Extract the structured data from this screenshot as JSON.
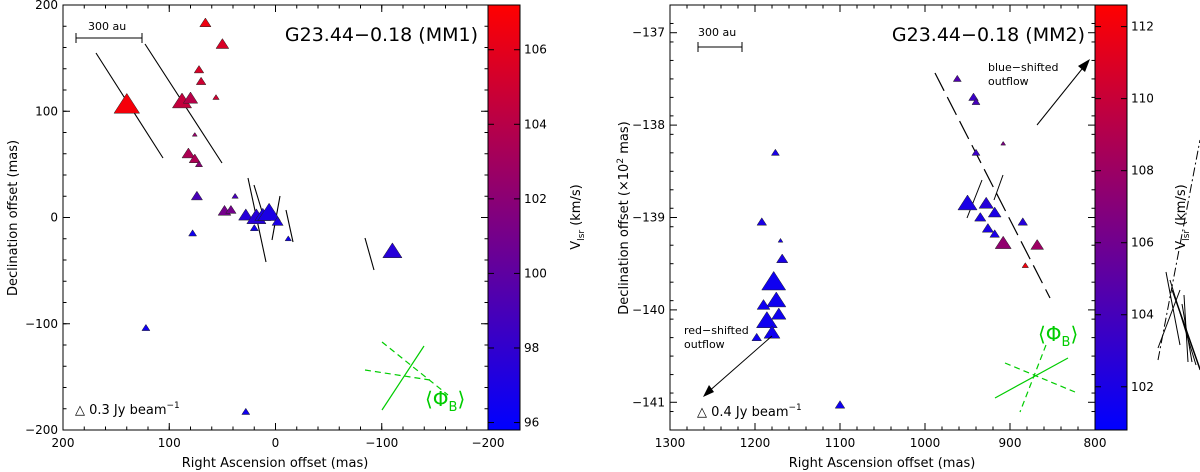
{
  "chart_data": [
    {
      "type": "scatter",
      "title": "G23.44−0.18 (MM1)",
      "xlabel": "Right Ascension offset (mas)",
      "ylabel": "Declination offset (mas)",
      "xlim": [
        200,
        -200
      ],
      "ylim": [
        -200,
        200
      ],
      "x_ticks": [
        "200",
        "100",
        "0",
        "−100",
        "−200"
      ],
      "y_ticks": [
        "−200",
        "−100",
        "0",
        "100",
        "200"
      ],
      "scale_bar": "300 au",
      "legend_flux": "△ 0.3 Jy beam",
      "legend_flux_exp": "−1",
      "phi_label": "⟨Φ",
      "phi_sub": "B",
      "phi_close": "⟩",
      "colorbar": {
        "label": "V",
        "label_sub": "lsr",
        "label_unit": " (km/s)",
        "range": [
          95.8,
          107.2
        ],
        "ticks": [
          "96",
          "98",
          "100",
          "102",
          "104",
          "106"
        ]
      },
      "points": [
        {
          "ra": 140,
          "dec": 106,
          "v": 106.8,
          "size": 3.2
        },
        {
          "ra": 88,
          "dec": 109,
          "v": 104.5,
          "size": 2.4
        },
        {
          "ra": 80,
          "dec": 112,
          "v": 104.0,
          "size": 1.8
        },
        {
          "ra": 66,
          "dec": 183,
          "v": 106.5,
          "size": 1.4
        },
        {
          "ra": 50,
          "dec": 163,
          "v": 105.5,
          "size": 1.6
        },
        {
          "ra": 72,
          "dec": 139,
          "v": 105.5,
          "size": 1.2
        },
        {
          "ra": 70,
          "dec": 128,
          "v": 105.0,
          "size": 1.2
        },
        {
          "ra": 56,
          "dec": 113,
          "v": 105.0,
          "size": 0.8
        },
        {
          "ra": 76,
          "dec": 78,
          "v": 102.5,
          "size": 0.6
        },
        {
          "ra": 82,
          "dec": 60,
          "v": 103.5,
          "size": 1.6
        },
        {
          "ra": 76,
          "dec": 55,
          "v": 103.5,
          "size": 1.4
        },
        {
          "ra": 72,
          "dec": 50,
          "v": 102.0,
          "size": 0.9
        },
        {
          "ra": 74,
          "dec": 20,
          "v": 99.0,
          "size": 1.4
        },
        {
          "ra": 48,
          "dec": 6,
          "v": 101.0,
          "size": 1.6
        },
        {
          "ra": 42,
          "dec": 7,
          "v": 101.0,
          "size": 1.3
        },
        {
          "ra": 38,
          "dec": 20,
          "v": 99.0,
          "size": 0.8
        },
        {
          "ra": 28,
          "dec": 2,
          "v": 97.5,
          "size": 1.8
        },
        {
          "ra": 18,
          "dec": 0,
          "v": 97.5,
          "size": 2.4
        },
        {
          "ra": 12,
          "dec": 2,
          "v": 97.0,
          "size": 2.0
        },
        {
          "ra": 6,
          "dec": 4,
          "v": 97.0,
          "size": 2.8
        },
        {
          "ra": -2,
          "dec": -4,
          "v": 97.0,
          "size": 1.4
        },
        {
          "ra": 20,
          "dec": -10,
          "v": 96.5,
          "size": 1.0
        },
        {
          "ra": -12,
          "dec": -20,
          "v": 96.5,
          "size": 0.8
        },
        {
          "ra": 78,
          "dec": -15,
          "v": 96.5,
          "size": 1.0
        },
        {
          "ra": -110,
          "dec": -32,
          "v": 97.5,
          "size": 2.4
        },
        {
          "ra": 122,
          "dec": -104,
          "v": 96.5,
          "size": 1.0
        },
        {
          "ra": 28,
          "dec": -183,
          "v": 96.5,
          "size": 1.0
        }
      ]
    },
    {
      "type": "scatter",
      "title": "G23.44−0.18 (MM2)",
      "xlabel": "Right Ascension offset (mas)",
      "ylabel": "Declination offset (×10",
      "ylabel_sup": "2",
      "ylabel_end": " mas)",
      "xlim": [
        1300,
        800
      ],
      "ylim": [
        -141.3,
        -136.7
      ],
      "x_ticks": [
        "1300",
        "1200",
        "1100",
        "1000",
        "900",
        "800"
      ],
      "y_ticks": [
        "−141",
        "−140",
        "−139",
        "−138",
        "−137"
      ],
      "scale_bar": "300 au",
      "legend_flux": "△ 0.4 Jy beam",
      "legend_flux_exp": "−1",
      "phi_label": "⟨Φ",
      "phi_sub": "B",
      "phi_close": "⟩",
      "annotation_blue_1": "blue−shifted",
      "annotation_blue_2": "outflow",
      "annotation_red_1": "red−shifted",
      "annotation_red_2": "outflow",
      "colorbar": {
        "label": "V",
        "label_sub": "lsr",
        "label_unit": " (km/s)",
        "range": [
          100.8,
          112.6
        ],
        "ticks": [
          "102",
          "104",
          "106",
          "108",
          "110",
          "112"
        ]
      },
      "points": [
        {
          "ra": 1192,
          "dec": -139.05,
          "v": 102.0,
          "size": 1.2
        },
        {
          "ra": 1176,
          "dec": -138.3,
          "v": 102.0,
          "size": 1.0
        },
        {
          "ra": 1170,
          "dec": -139.25,
          "v": 102.0,
          "size": 0.6
        },
        {
          "ra": 1168,
          "dec": -139.45,
          "v": 102.0,
          "size": 1.4
        },
        {
          "ra": 1178,
          "dec": -139.7,
          "v": 101.5,
          "size": 3.0
        },
        {
          "ra": 1175,
          "dec": -139.9,
          "v": 101.5,
          "size": 2.4
        },
        {
          "ra": 1190,
          "dec": -139.95,
          "v": 101.5,
          "size": 1.6
        },
        {
          "ra": 1186,
          "dec": -140.12,
          "v": 101.5,
          "size": 2.6
        },
        {
          "ra": 1180,
          "dec": -140.25,
          "v": 101.5,
          "size": 2.0
        },
        {
          "ra": 1198,
          "dec": -140.3,
          "v": 101.5,
          "size": 1.2
        },
        {
          "ra": 1172,
          "dec": -140.05,
          "v": 101.5,
          "size": 1.8
        },
        {
          "ra": 1100,
          "dec": -141.03,
          "v": 101.5,
          "size": 1.2
        },
        {
          "ra": 962,
          "dec": -137.5,
          "v": 104.5,
          "size": 1.0
        },
        {
          "ra": 943,
          "dec": -137.7,
          "v": 103.5,
          "size": 1.2
        },
        {
          "ra": 940,
          "dec": -137.75,
          "v": 104.0,
          "size": 1.0
        },
        {
          "ra": 940,
          "dec": -138.3,
          "v": 103.5,
          "size": 1.0
        },
        {
          "ra": 908,
          "dec": -138.2,
          "v": 106.5,
          "size": 0.6
        },
        {
          "ra": 950,
          "dec": -138.85,
          "v": 102.0,
          "size": 2.4
        },
        {
          "ra": 928,
          "dec": -138.85,
          "v": 102.5,
          "size": 1.8
        },
        {
          "ra": 918,
          "dec": -138.95,
          "v": 102.0,
          "size": 1.6
        },
        {
          "ra": 935,
          "dec": -139.0,
          "v": 102.0,
          "size": 1.4
        },
        {
          "ra": 926,
          "dec": -139.12,
          "v": 102.0,
          "size": 1.4
        },
        {
          "ra": 885,
          "dec": -139.05,
          "v": 102.5,
          "size": 1.2
        },
        {
          "ra": 918,
          "dec": -139.18,
          "v": 102.0,
          "size": 1.2
        },
        {
          "ra": 908,
          "dec": -139.28,
          "v": 107.5,
          "size": 2.0
        },
        {
          "ra": 868,
          "dec": -139.3,
          "v": 108.0,
          "size": 1.6
        },
        {
          "ra": 882,
          "dec": -139.52,
          "v": 112.0,
          "size": 0.8
        }
      ]
    }
  ]
}
